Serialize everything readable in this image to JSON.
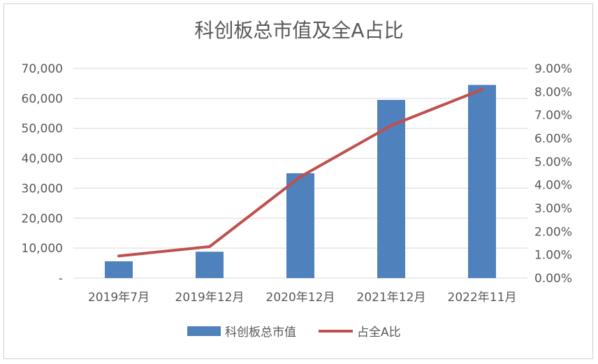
{
  "chart_data": {
    "type": "bar",
    "title": "科创板总市值及全A占比",
    "categories": [
      "2019年7月",
      "2019年12月",
      "2020年12月",
      "2021年12月",
      "2022年11月"
    ],
    "series": [
      {
        "name": "科创板总市值",
        "type": "bar",
        "axis": "left",
        "values": [
          5600,
          8800,
          35000,
          59500,
          64500
        ]
      },
      {
        "name": "占全A比",
        "type": "line",
        "axis": "right",
        "values": [
          0.95,
          1.35,
          4.35,
          6.55,
          8.1
        ]
      }
    ],
    "y_left": {
      "ylim": [
        0,
        70000
      ],
      "ticks": [
        "-",
        "10,000",
        "20,000",
        "30,000",
        "40,000",
        "50,000",
        "60,000",
        "70,000"
      ]
    },
    "y_right": {
      "ylim": [
        0,
        9
      ],
      "ticks": [
        "0.00%",
        "1.00%",
        "2.00%",
        "3.00%",
        "4.00%",
        "5.00%",
        "6.00%",
        "7.00%",
        "8.00%",
        "9.00%"
      ]
    },
    "grid": true,
    "legend_position": "bottom",
    "colors": {
      "bar": "#4f81bd",
      "line": "#c0504d",
      "grid": "#d9d9d9",
      "text": "#595959"
    }
  }
}
